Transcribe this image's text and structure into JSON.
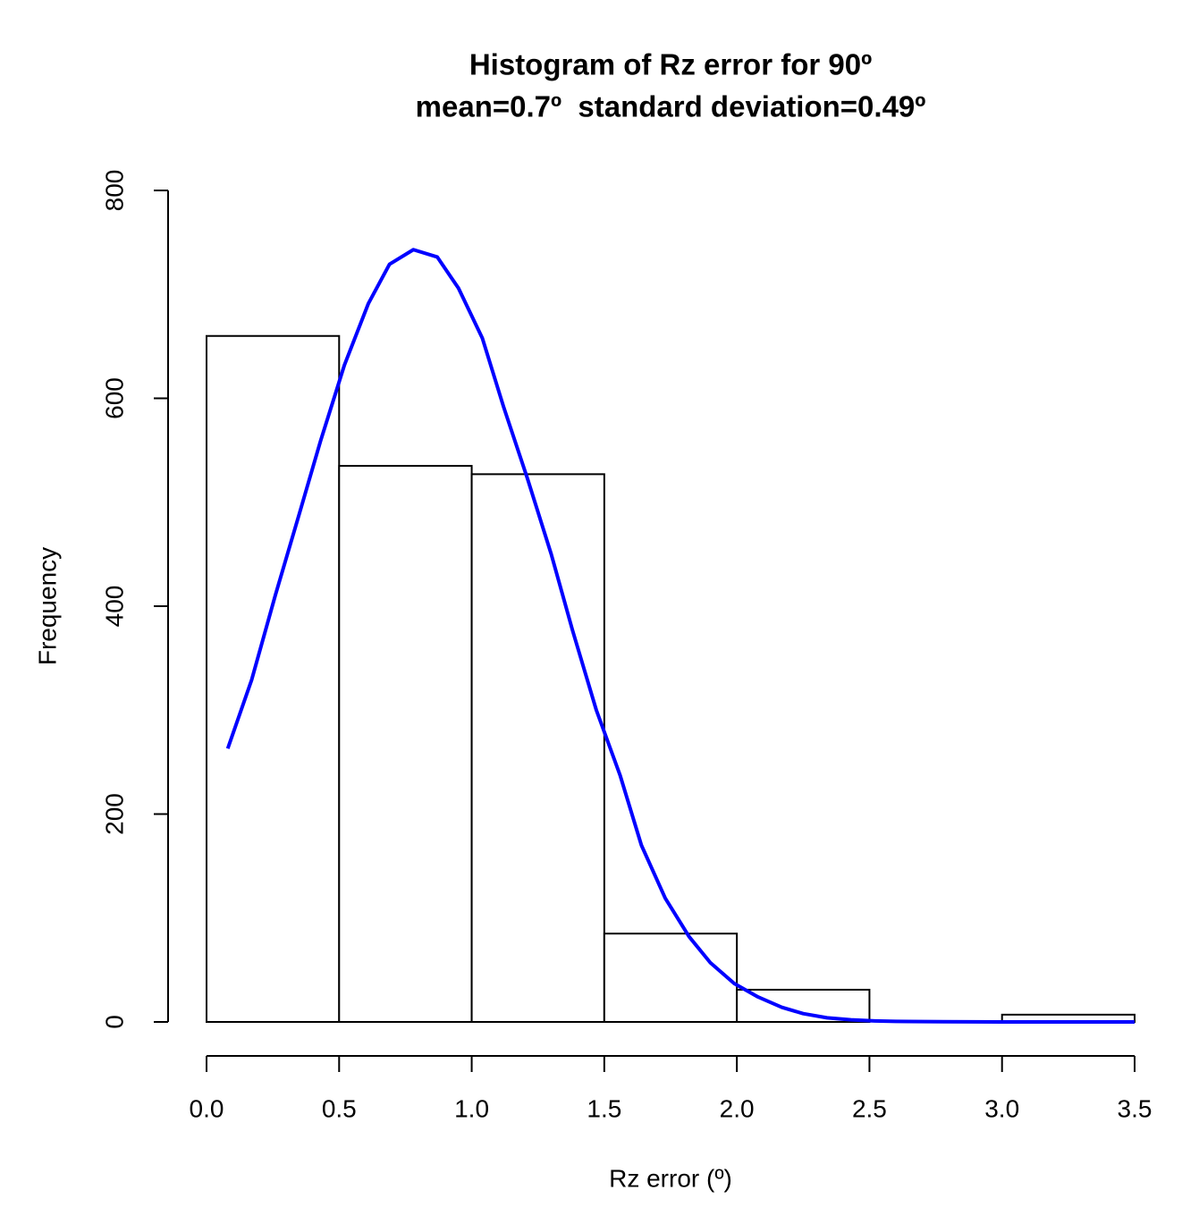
{
  "chart_data": {
    "type": "histogram",
    "title": "Histogram of Rz error for 90º",
    "subtitle": "mean=0.7º  standard deviation=0.49º",
    "x_label": "Rz error (º)",
    "y_label": "Frequency",
    "bins": [
      0,
      0.5,
      1,
      1.5,
      2,
      2.5,
      3,
      3.5
    ],
    "counts": [
      660,
      535,
      527,
      85,
      31,
      0,
      7
    ],
    "bar_color": "#ffffff",
    "xlim": [
      0,
      3.5
    ],
    "xticks": [
      {
        "value": 0,
        "label": "0.0"
      },
      0.5,
      {
        "value": 1,
        "label": "1.0"
      },
      1.5,
      {
        "value": 2,
        "label": "2.0"
      },
      2.5,
      {
        "value": 3,
        "label": "3.0"
      },
      3.5
    ],
    "ylim": [
      0,
      800
    ],
    "yticks": [
      0,
      200,
      400,
      600,
      800
    ],
    "curve": {
      "color": "#0000ff",
      "x": [
        0.08,
        0.17,
        0.26,
        0.35,
        0.43,
        0.52,
        0.61,
        0.69,
        0.78,
        0.87,
        0.95,
        1.04,
        1.12,
        1.21,
        1.3,
        1.38,
        1.47,
        1.56,
        1.64,
        1.73,
        1.82,
        1.9,
        1.99,
        2.08,
        2.17,
        2.25,
        2.34,
        2.43,
        2.52,
        2.6,
        2.78,
        3.0,
        3.25,
        3.5
      ],
      "values": [
        263,
        329,
        411,
        489,
        559,
        632,
        691,
        729,
        743,
        736,
        706,
        658,
        592,
        523,
        450,
        377,
        300,
        237,
        170,
        119,
        82,
        57,
        37,
        24,
        14,
        8,
        4,
        2,
        1,
        0.5,
        0.2,
        0,
        0,
        0
      ]
    }
  }
}
